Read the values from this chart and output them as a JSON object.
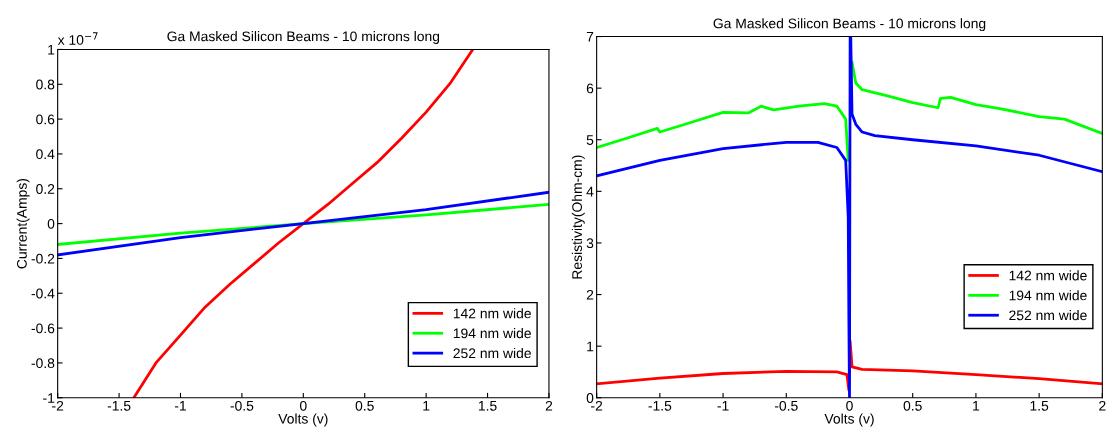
{
  "chart_data": [
    {
      "type": "line",
      "title": "Ga Masked Silicon Beams - 10 microns long",
      "xlabel": "Volts (v)",
      "ylabel": "Current(Amps)",
      "annotations": [
        "x 10$^{−7}$"
      ],
      "xlim": [
        -2,
        2
      ],
      "ylim": [
        -1,
        1
      ],
      "xticks": [
        -2,
        -1.5,
        -1,
        -0.5,
        0,
        0.5,
        1,
        1.5,
        2
      ],
      "yticks": [
        -1,
        -0.8,
        -0.6,
        -0.4,
        -0.2,
        0,
        0.2,
        0.4,
        0.6,
        0.8,
        1
      ],
      "grid": false,
      "legend": "bottom right",
      "series": [
        {
          "name": "142 nm wide",
          "color": "#ff0000",
          "x": [
            -1.38,
            -1.2,
            -1,
            -0.8,
            -0.6,
            -0.4,
            -0.2,
            0,
            0.2,
            0.4,
            0.6,
            0.8,
            1,
            1.2,
            1.38
          ],
          "values": [
            -1,
            -0.8,
            -0.64,
            -0.48,
            -0.35,
            -0.23,
            -0.11,
            0,
            0.11,
            0.23,
            0.35,
            0.49,
            0.64,
            0.81,
            1
          ]
        },
        {
          "name": "194 nm wide",
          "color": "#00ff00",
          "x": [
            -2,
            -1,
            0,
            1,
            2
          ],
          "values": [
            -0.12,
            -0.055,
            0,
            0.05,
            0.11
          ]
        },
        {
          "name": "252 nm wide",
          "color": "#0000ff",
          "x": [
            -2,
            -1,
            0,
            1,
            2
          ],
          "values": [
            -0.18,
            -0.08,
            0,
            0.08,
            0.18
          ]
        }
      ]
    },
    {
      "type": "line",
      "title": "Ga Masked Silicon Beams - 10 microns long",
      "xlabel": "Volts (v)",
      "ylabel": "Resistivity(Ohm-cm)",
      "xlim": [
        -2,
        2
      ],
      "ylim": [
        0,
        7
      ],
      "xticks": [
        -2,
        -1.5,
        -1,
        -0.5,
        0,
        0.5,
        1,
        1.5,
        2
      ],
      "yticks": [
        0,
        1,
        2,
        3,
        4,
        5,
        6,
        7
      ],
      "grid": false,
      "legend": "right",
      "series": [
        {
          "name": "142 nm wide",
          "color": "#ff0000",
          "x": [
            -2,
            -1.5,
            -1,
            -0.5,
            -0.1,
            -0.02,
            -0.005,
            0.005,
            0.02,
            0.1,
            0.5,
            1,
            1.5,
            2
          ],
          "values": [
            0.27,
            0.38,
            0.47,
            0.51,
            0.5,
            0.45,
            0.15,
            1.1,
            0.6,
            0.55,
            0.52,
            0.45,
            0.37,
            0.27
          ]
        },
        {
          "name": "194 nm wide",
          "color": "#00ff00",
          "x": [
            -2,
            -1.8,
            -1.52,
            -1.5,
            -1.3,
            -1,
            -0.8,
            -0.7,
            -0.6,
            -0.4,
            -0.2,
            -0.1,
            -0.03,
            -0.01,
            0.005,
            0.01,
            0.02,
            0.05,
            0.1,
            0.3,
            0.5,
            0.7,
            0.72,
            0.8,
            1,
            1.2,
            1.5,
            1.7,
            2
          ],
          "values": [
            4.85,
            5.0,
            5.22,
            5.15,
            5.3,
            5.53,
            5.52,
            5.65,
            5.58,
            5.65,
            5.7,
            5.65,
            5.4,
            4.6,
            null,
            null,
            6.5,
            6.1,
            5.97,
            5.85,
            5.72,
            5.62,
            5.8,
            5.82,
            5.68,
            5.6,
            5.45,
            5.4,
            5.12
          ]
        },
        {
          "name": "252 nm wide",
          "color": "#0000ff",
          "x": [
            -2,
            -1.5,
            -1,
            -0.5,
            -0.25,
            -0.1,
            -0.03,
            -0.01,
            -0.005,
            0,
            0.005,
            0.01,
            0.02,
            0.05,
            0.1,
            0.2,
            0.5,
            1,
            1.5,
            2
          ],
          "values": [
            4.3,
            4.6,
            4.83,
            4.95,
            4.95,
            4.85,
            4.6,
            3.5,
            1.5,
            0,
            7,
            7,
            5.5,
            5.3,
            5.15,
            5.08,
            5.0,
            4.88,
            4.7,
            4.38
          ]
        }
      ]
    }
  ]
}
